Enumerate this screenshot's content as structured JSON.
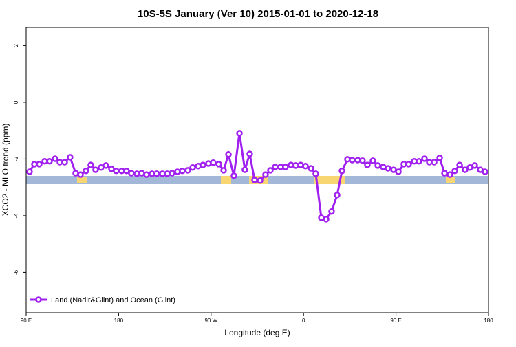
{
  "chart_data": {
    "type": "line",
    "title": "10S-5S January (Ver 10)   2015-01-01 to 2020-12-18",
    "x_label": "Longitude (deg E)",
    "y_label": "XCO2 - MLO trend (ppm)",
    "xlim": [
      90,
      540
    ],
    "ylim": [
      -7.42,
      2.64
    ],
    "xticks": [
      {
        "value": 90,
        "label": "90 E"
      },
      180,
      {
        "value": 270,
        "label": "90 W"
      },
      {
        "value": 360,
        "label": "0"
      },
      {
        "value": 450,
        "label": "90 E"
      },
      {
        "value": 540,
        "label": "180"
      }
    ],
    "yticks": [
      2,
      0,
      -2,
      -4,
      -6
    ],
    "legend": "bottom-left",
    "series": [
      {
        "name": "Land (Nadir&Glint) and Ocean (Glint)",
        "color": "#a020f0",
        "x": [
          93.3,
          98.0,
          102.7,
          108.1,
          112.8,
          118.1,
          122.8,
          127.5,
          132.8,
          138.2,
          142.9,
          148.2,
          152.9,
          157.6,
          162.9,
          167.6,
          173.0,
          177.7,
          183.0,
          187.7,
          192.4,
          197.8,
          202.5,
          207.2,
          212.5,
          217.2,
          222.6,
          227.3,
          232.0,
          237.3,
          242.0,
          247.4,
          252.1,
          257.4,
          262.1,
          267.4,
          272.1,
          277.5,
          282.2,
          286.9,
          292.2,
          297.6,
          302.9,
          307.6,
          312.3,
          317.7,
          323.0,
          327.7,
          332.4,
          337.7,
          342.4,
          347.8,
          352.5,
          357.2,
          361.9,
          367.2,
          371.9,
          377.3,
          382.0,
          387.3,
          392.7,
          397.4,
          402.7,
          407.4,
          412.7,
          417.4,
          422.1,
          427.5,
          432.2,
          437.5,
          442.2,
          447.6,
          452.3,
          457.6,
          462.3,
          467.7,
          472.3,
          477.7,
          482.4,
          487.1,
          492.5,
          497.2,
          502.5,
          507.2,
          511.9,
          517.2,
          521.9,
          526.6,
          532.0,
          536.7
        ],
        "values": [
          -2.45,
          -2.18,
          -2.18,
          -2.08,
          -2.08,
          -1.99,
          -2.11,
          -2.11,
          -1.94,
          -2.5,
          -2.55,
          -2.42,
          -2.21,
          -2.38,
          -2.3,
          -2.23,
          -2.35,
          -2.42,
          -2.42,
          -2.42,
          -2.5,
          -2.52,
          -2.5,
          -2.55,
          -2.52,
          -2.52,
          -2.52,
          -2.52,
          -2.5,
          -2.45,
          -2.42,
          -2.4,
          -2.3,
          -2.25,
          -2.21,
          -2.16,
          -2.13,
          -2.18,
          -2.4,
          -1.84,
          -2.59,
          -1.09,
          -2.38,
          -1.82,
          -2.74,
          -2.76,
          -2.55,
          -2.4,
          -2.28,
          -2.28,
          -2.28,
          -2.21,
          -2.23,
          -2.21,
          -2.25,
          -2.33,
          -2.52,
          -4.07,
          -4.12,
          -3.85,
          -3.27,
          -2.42,
          -2.01,
          -2.04,
          -2.04,
          -2.06,
          -2.21,
          -2.06,
          -2.23,
          -2.28,
          -2.33,
          -2.38,
          -2.45,
          -2.18,
          -2.18,
          -2.08,
          -2.08,
          -1.99,
          -2.11,
          -2.11,
          -1.96,
          -2.5,
          -2.55,
          -2.42,
          -2.21,
          -2.38,
          -2.3,
          -2.23,
          -2.38,
          -2.45
        ]
      }
    ]
  }
}
